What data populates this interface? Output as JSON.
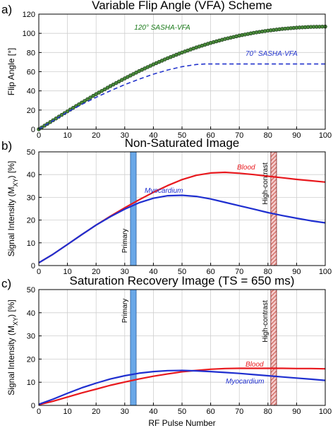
{
  "chart_data": [
    {
      "panel": "a)",
      "type": "line",
      "title": "Variable Flip Angle (VFA) Scheme",
      "xlabel": "",
      "ylabel": "Flip Angle [°]",
      "xlim": [
        0,
        100
      ],
      "ylim": [
        0,
        120
      ],
      "xticks": [
        "0",
        "10",
        "20",
        "30",
        "40",
        "50",
        "60",
        "70",
        "80",
        "90",
        "100"
      ],
      "yticks": [
        "0",
        "20",
        "40",
        "60",
        "80",
        "100",
        "120"
      ],
      "grid": true,
      "series": [
        {
          "name": "120° SASHA-VFA",
          "color": "#1a7a1a",
          "style": "line-with-circle-markers",
          "x": [
            0,
            5,
            10,
            15,
            20,
            25,
            30,
            35,
            40,
            45,
            50,
            55,
            60,
            65,
            70,
            75,
            80,
            85,
            90,
            95,
            100
          ],
          "y": [
            0,
            9.4,
            18.7,
            27.8,
            36.6,
            45.0,
            53.0,
            60.6,
            67.6,
            74.1,
            80.0,
            85.3,
            90.0,
            94.1,
            97.6,
            100.5,
            102.8,
            104.6,
            105.9,
            106.7,
            107.0
          ]
        },
        {
          "name": "70° SASHA-VFA",
          "color": "#2233cc",
          "style": "dashed",
          "x": [
            0,
            5,
            10,
            15,
            20,
            25,
            30,
            35,
            40,
            45,
            50,
            55,
            58,
            60,
            70,
            80,
            90,
            100
          ],
          "y": [
            0,
            9.0,
            17.8,
            25.9,
            33.3,
            40.1,
            46.5,
            52.2,
            57.4,
            61.8,
            65.2,
            67.5,
            68.0,
            68.0,
            68.0,
            68.0,
            68.0,
            68.0
          ]
        }
      ]
    },
    {
      "panel": "b)",
      "type": "line",
      "title": "Non-Saturated Image",
      "xlabel": "",
      "ylabel": "Signal Intensity (M",
      "ylabel_sub": "XY",
      "ylabel_tail": ") [%]",
      "xlim": [
        0,
        100
      ],
      "ylim": [
        0,
        50
      ],
      "xticks": [
        "0",
        "10",
        "20",
        "30",
        "40",
        "50",
        "60",
        "70",
        "80",
        "90",
        "100"
      ],
      "yticks": [
        "0",
        "10",
        "20",
        "30",
        "40",
        "50"
      ],
      "grid": true,
      "bands": [
        {
          "label": "Primary",
          "x0": 32,
          "x1": 34,
          "fill": "#6aa8e8",
          "hatched": false
        },
        {
          "label": "High-contrast",
          "x0": 81,
          "x1": 83,
          "fill": "#e8a0a0",
          "hatched": true
        }
      ],
      "series": [
        {
          "name": "Blood",
          "color": "#e8191e",
          "x": [
            0,
            5,
            10,
            15,
            20,
            25,
            30,
            35,
            40,
            45,
            50,
            55,
            60,
            65,
            70,
            75,
            80,
            85,
            90,
            95,
            100
          ],
          "y": [
            1.2,
            5.0,
            9.3,
            13.6,
            17.8,
            21.7,
            25.4,
            28.9,
            32.2,
            35.2,
            37.8,
            39.7,
            40.7,
            41.0,
            40.6,
            40.0,
            39.3,
            38.6,
            37.9,
            37.3,
            36.7
          ]
        },
        {
          "name": "Myocardium",
          "color": "#1f2fd0",
          "x": [
            0,
            5,
            10,
            15,
            20,
            25,
            30,
            35,
            40,
            45,
            50,
            55,
            60,
            65,
            70,
            75,
            80,
            85,
            90,
            95,
            100
          ],
          "y": [
            1.2,
            5.0,
            9.3,
            13.6,
            17.8,
            21.5,
            24.8,
            27.6,
            29.6,
            30.7,
            30.9,
            30.4,
            29.3,
            27.8,
            26.3,
            24.8,
            23.3,
            22.0,
            20.8,
            19.7,
            18.8
          ]
        }
      ]
    },
    {
      "panel": "c)",
      "type": "line",
      "title": "Saturation Recovery Image (TS = 650 ms)",
      "xlabel": "RF Pulse Number",
      "ylabel": "Signal Intensity (M",
      "ylabel_sub": "XY",
      "ylabel_tail": ") [%]",
      "xlim": [
        0,
        100
      ],
      "ylim": [
        0,
        50
      ],
      "xticks": [
        "0",
        "10",
        "20",
        "30",
        "40",
        "50",
        "60",
        "70",
        "80",
        "90",
        "100"
      ],
      "yticks": [
        "0",
        "10",
        "20",
        "30",
        "40",
        "50"
      ],
      "grid": true,
      "bands": [
        {
          "label": "Primary",
          "x0": 32,
          "x1": 34,
          "fill": "#6aa8e8",
          "hatched": false
        },
        {
          "label": "High-contrast",
          "x0": 81,
          "x1": 83,
          "fill": "#e8a0a0",
          "hatched": true
        }
      ],
      "series": [
        {
          "name": "Blood",
          "color": "#e8191e",
          "x": [
            0,
            5,
            10,
            15,
            20,
            25,
            30,
            35,
            40,
            45,
            50,
            55,
            60,
            65,
            70,
            75,
            80,
            85,
            90,
            95,
            100
          ],
          "y": [
            0.3,
            1.8,
            3.6,
            5.4,
            7.0,
            8.7,
            10.1,
            11.4,
            12.6,
            13.6,
            14.5,
            15.1,
            15.6,
            15.9,
            16.0,
            16.0,
            16.0,
            16.0,
            15.9,
            15.9,
            15.8
          ]
        },
        {
          "name": "Myocardium",
          "color": "#1f2fd0",
          "x": [
            0,
            5,
            10,
            15,
            20,
            25,
            30,
            35,
            40,
            45,
            50,
            55,
            60,
            65,
            70,
            75,
            80,
            85,
            90,
            95,
            100
          ],
          "y": [
            0.5,
            2.7,
            5.2,
            7.6,
            9.6,
            11.4,
            12.8,
            13.9,
            14.6,
            15.0,
            15.1,
            14.9,
            14.6,
            14.2,
            13.8,
            13.3,
            12.8,
            12.3,
            11.8,
            11.3,
            10.8
          ]
        }
      ]
    }
  ]
}
